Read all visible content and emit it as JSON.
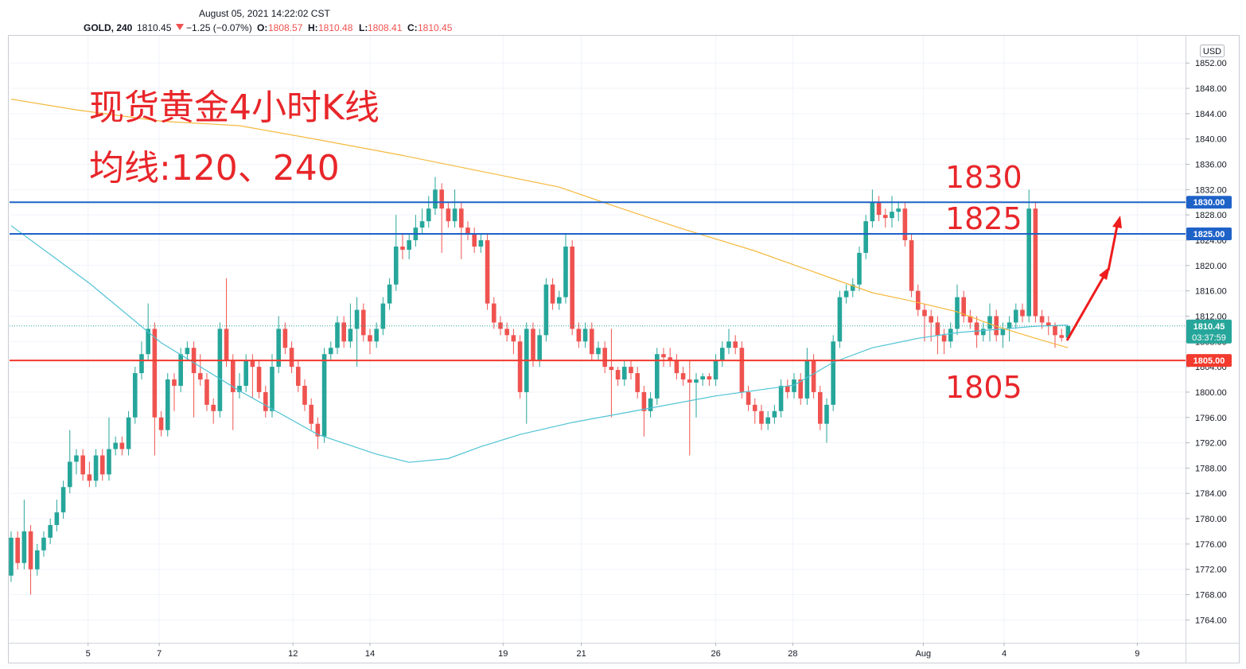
{
  "chart_data": {
    "type": "candlestick",
    "header": "August 05, 2021 14:22:02 CST",
    "legend": {
      "symbol": "GOLD, 240",
      "last": "1810.45",
      "change": "−1.25 (−0.07%)",
      "ohlc": [
        [
          "O:",
          "1808.57"
        ],
        [
          "H:",
          "1810.48"
        ],
        [
          "L:",
          "1808.41"
        ],
        [
          "C:",
          "1810.45"
        ]
      ]
    },
    "title": "现货黄金4小时K线",
    "subtitle": "均线:120、240",
    "annotations": [
      "1830",
      "1825",
      "1805"
    ],
    "currency": "USD",
    "up_color": "#26a69a",
    "down_color": "#ef5350",
    "open": [
      1771,
      1777,
      1773,
      1778,
      1772,
      1775,
      1777,
      1779,
      1781,
      1785,
      1789,
      1790,
      1787,
      1786,
      1790,
      1787,
      1791,
      1792,
      1791,
      1796,
      1803,
      1806,
      1810,
      1796,
      1794,
      1802,
      1801,
      1806,
      1807,
      1803,
      1802,
      1798,
      1797,
      1810,
      1805,
      1800,
      1801,
      1805,
      1804,
      1800,
      1797,
      1804,
      1810,
      1807,
      1804,
      1801,
      1798,
      1795,
      1793,
      1806,
      1807,
      1811,
      1808,
      1810,
      1813,
      1809,
      1808,
      1810,
      1814,
      1817,
      1823,
      1822.5,
      1824,
      1826,
      1827,
      1829,
      1832,
      1829,
      1827,
      1829,
      1826,
      1825,
      1823,
      1824,
      1814,
      1811,
      1810,
      1809,
      1808,
      1800,
      1810,
      1805,
      1809,
      1817,
      1814,
      1815,
      1823,
      1810,
      1808,
      1810,
      1806,
      1807,
      1804,
      1803.5,
      1802,
      1804,
      1803,
      1800,
      1797,
      1799,
      1806,
      1805.5,
      1805,
      1803,
      1802,
      1801.5,
      1802,
      1802.5,
      1802,
      1805,
      1807,
      1808,
      1807,
      1800,
      1798,
      1797,
      1795,
      1796,
      1797,
      1801,
      1800,
      1802,
      1799,
      1805,
      1800,
      1795,
      1798,
      1808,
      1815,
      1816,
      1817,
      1822,
      1827,
      1830,
      1828,
      1827.5,
      1828.5,
      1829,
      1824,
      1816,
      1813,
      1812,
      1811,
      1809,
      1808,
      1810,
      1815,
      1812,
      1811,
      1809,
      1810,
      1812,
      1809,
      1810,
      1811,
      1813,
      1812,
      1829,
      1812,
      1811,
      1810.5,
      1809,
      1808.57
    ],
    "high": [
      1778,
      1778,
      1783,
      1779,
      1776,
      1778,
      1780,
      1783,
      1786,
      1794,
      1791,
      1791,
      1789,
      1791,
      1791,
      1796,
      1793,
      1793,
      1797,
      1804,
      1808,
      1814,
      1811,
      1797,
      1803,
      1803,
      1807,
      1808,
      1808,
      1806,
      1803,
      1799,
      1811,
      1818,
      1806,
      1803,
      1806,
      1806,
      1805,
      1801,
      1806,
      1812,
      1811,
      1808,
      1805,
      1802,
      1799,
      1796,
      1807,
      1808,
      1812,
      1812,
      1814,
      1815,
      1814,
      1810,
      1811,
      1815,
      1818,
      1828,
      1825,
      1825,
      1828,
      1829,
      1831,
      1834,
      1833,
      1830,
      1832,
      1830,
      1827,
      1826,
      1825,
      1825,
      1815,
      1812,
      1811,
      1810,
      1809,
      1811,
      1811,
      1810,
      1818,
      1818,
      1816,
      1825,
      1824,
      1811,
      1811,
      1811,
      1808,
      1808,
      1810,
      1804,
      1805,
      1805,
      1804,
      1801,
      1800,
      1807,
      1807,
      1807,
      1806,
      1804,
      1805,
      1803,
      1803,
      1803,
      1806,
      1808,
      1810,
      1809,
      1808,
      1801,
      1799,
      1798,
      1797,
      1798,
      1802,
      1802,
      1803,
      1803,
      1807,
      1806,
      1801,
      1799,
      1809,
      1816,
      1817,
      1818,
      1823,
      1828,
      1832,
      1831,
      1829,
      1831,
      1830,
      1830,
      1825,
      1817,
      1814,
      1813,
      1812,
      1810,
      1811,
      1817,
      1816,
      1813,
      1812,
      1811,
      1814,
      1813,
      1811,
      1812,
      1814,
      1814,
      1832,
      1830,
      1813,
      1812,
      1811,
      1810,
      1810.48
    ],
    "low": [
      1770,
      1772,
      1772,
      1768,
      1771,
      1774,
      1776,
      1778,
      1780,
      1784,
      1787,
      1786,
      1785,
      1785,
      1786,
      1786,
      1790,
      1790,
      1790,
      1795,
      1802,
      1805,
      1790,
      1793,
      1793,
      1797,
      1800,
      1805,
      1796,
      1801,
      1797,
      1795,
      1796,
      1804,
      1794,
      1799,
      1800,
      1799,
      1799,
      1796,
      1796,
      1803,
      1806,
      1803,
      1800,
      1797,
      1794,
      1791,
      1792,
      1805,
      1806,
      1807,
      1807,
      1804,
      1808,
      1806,
      1807,
      1809,
      1813,
      1816,
      1821,
      1821,
      1823,
      1825,
      1826,
      1828,
      1822,
      1826,
      1826,
      1821,
      1824,
      1822,
      1822,
      1813,
      1810,
      1809,
      1808,
      1806,
      1799,
      1795,
      1804,
      1804,
      1808,
      1813,
      1813,
      1814,
      1809,
      1807,
      1807,
      1805,
      1805,
      1803,
      1796,
      1801,
      1801,
      1802,
      1799,
      1793,
      1796,
      1798,
      1804,
      1804,
      1802,
      1801,
      1790,
      1796,
      1801,
      1801,
      1801,
      1804,
      1806,
      1806,
      1799,
      1797,
      1795,
      1794,
      1794,
      1795,
      1796,
      1799,
      1799,
      1798,
      1798,
      1799,
      1794,
      1792,
      1797,
      1807,
      1814,
      1815,
      1816,
      1821,
      1826,
      1827,
      1826,
      1826,
      1827,
      1823,
      1815,
      1812,
      1808,
      1808,
      1806,
      1806,
      1807,
      1809,
      1811,
      1810,
      1807,
      1808,
      1808,
      1808,
      1807,
      1808,
      1810,
      1811,
      1811,
      1811,
      1810,
      1809,
      1807,
      1808,
      1808.41
    ],
    "close": [
      1777,
      1773,
      1778,
      1772,
      1775,
      1777,
      1779,
      1781,
      1785,
      1789,
      1790,
      1787,
      1786,
      1790,
      1787,
      1791,
      1792,
      1791,
      1796,
      1803,
      1806,
      1810,
      1796,
      1794,
      1802,
      1801,
      1806,
      1807,
      1803,
      1802,
      1798,
      1797,
      1810,
      1805,
      1800,
      1801,
      1805,
      1804,
      1800,
      1797,
      1804,
      1810,
      1807,
      1804,
      1801,
      1798,
      1795,
      1793,
      1806,
      1807,
      1811,
      1808,
      1810,
      1813,
      1809,
      1808,
      1810,
      1814,
      1817,
      1823,
      1822.5,
      1824,
      1826,
      1827,
      1829,
      1832,
      1829,
      1827,
      1829,
      1826,
      1825,
      1823,
      1824,
      1814,
      1811,
      1810,
      1809,
      1808,
      1800,
      1810,
      1805,
      1809,
      1817,
      1814,
      1815,
      1823,
      1810,
      1808,
      1810,
      1806,
      1807,
      1804,
      1803.5,
      1802,
      1804,
      1803,
      1800,
      1797,
      1799,
      1806,
      1805.5,
      1805,
      1803,
      1802,
      1801.5,
      1802,
      1802.5,
      1802,
      1805,
      1807,
      1808,
      1807,
      1800,
      1798,
      1797,
      1795,
      1796,
      1797,
      1801,
      1800,
      1802,
      1799,
      1805,
      1800,
      1795,
      1798,
      1808,
      1815,
      1816,
      1817,
      1822,
      1827,
      1830,
      1828,
      1827.5,
      1828.5,
      1829,
      1824,
      1816,
      1813,
      1812,
      1811,
      1809,
      1808,
      1810,
      1815,
      1812,
      1811,
      1809,
      1810,
      1812,
      1809,
      1810,
      1811,
      1813,
      1812,
      1829,
      1812,
      1811,
      1810.5,
      1809,
      1808.57,
      1810.45
    ],
    "series": [
      {
        "color": "#4fc3d4",
        "x": [
          0,
          12,
          23,
          35,
          47,
          56,
          61,
          67,
          72,
          78,
          86,
          96,
          108,
          120,
          126,
          132,
          139,
          145,
          157,
          162
        ],
        "values": [
          1826.3,
          1817.2,
          1807.8,
          1800.2,
          1793.3,
          1790.2,
          1788.9,
          1789.5,
          1791.4,
          1793.3,
          1795.2,
          1797.1,
          1799.4,
          1801.1,
          1804.7,
          1807.0,
          1808.5,
          1809.4,
          1810.4,
          1810.6
        ]
      },
      {
        "color": "#f5b93e",
        "x": [
          0,
          10,
          23,
          35,
          47,
          60,
          72,
          84,
          91,
          102,
          114,
          126,
          132,
          138,
          145,
          151,
          157,
          162
        ],
        "values": [
          1846.3,
          1844.6,
          1842.8,
          1842.1,
          1839.9,
          1837.4,
          1834.9,
          1832.4,
          1829.9,
          1826.1,
          1822.3,
          1817.9,
          1815.7,
          1814.4,
          1812.7,
          1810.4,
          1808.5,
          1807.0
        ]
      }
    ],
    "levels": [
      {
        "value": 1830,
        "label": "1830.00",
        "color": "#1e62c8"
      },
      {
        "value": 1825,
        "label": "1825.00",
        "color": "#1e62c8"
      },
      {
        "value": 1805,
        "label": "1805.00",
        "color": "#f23a2e"
      }
    ],
    "last_price": {
      "value": 1810.45,
      "countdown": "03:37:59",
      "color": "#26a69a"
    },
    "xlim": [
      -0.24,
      180
    ],
    "xticks": [
      {
        "value": 11.8,
        "label": "5"
      },
      {
        "value": 22.7,
        "label": "7"
      },
      {
        "value": 43.2,
        "label": "12"
      },
      {
        "value": 55,
        "label": "14"
      },
      {
        "value": 75.4,
        "label": "19"
      },
      {
        "value": 87.4,
        "label": "21"
      },
      {
        "value": 108,
        "label": "26"
      },
      {
        "value": 119.8,
        "label": "28"
      },
      {
        "value": 139.8,
        "label": "Aug"
      },
      {
        "value": 152.2,
        "label": "4"
      },
      {
        "value": 172.6,
        "label": "9"
      }
    ],
    "ylim": [
      1760.4,
      1856.3
    ],
    "yticks": [
      {
        "value": 1764,
        "label": "1764.00"
      },
      {
        "value": 1768,
        "label": "1768.00"
      },
      {
        "value": 1772,
        "label": "1772.00"
      },
      {
        "value": 1776,
        "label": "1776.00"
      },
      {
        "value": 1780,
        "label": "1780.00"
      },
      {
        "value": 1784,
        "label": "1784.00"
      },
      {
        "value": 1788,
        "label": "1788.00"
      },
      {
        "value": 1792,
        "label": "1792.00"
      },
      {
        "value": 1796,
        "label": "1796.00"
      },
      {
        "value": 1800,
        "label": "1800.00"
      },
      {
        "value": 1804,
        "label": "1804.00"
      },
      {
        "value": 1808,
        "label": "1808.00"
      },
      {
        "value": 1812,
        "label": "1812.00"
      },
      {
        "value": 1816,
        "label": "1816.00"
      },
      {
        "value": 1820,
        "label": "1820.00"
      },
      {
        "value": 1824,
        "label": "1824.00"
      },
      {
        "value": 1828,
        "label": "1828.00"
      },
      {
        "value": 1832,
        "label": "1832.00"
      },
      {
        "value": 1836,
        "label": "1836.00"
      },
      {
        "value": 1840,
        "label": "1840.00"
      },
      {
        "value": 1844,
        "label": "1844.00"
      },
      {
        "value": 1848,
        "label": "1848.00"
      },
      {
        "value": 1852,
        "label": "1852.00"
      }
    ],
    "grid": true
  }
}
